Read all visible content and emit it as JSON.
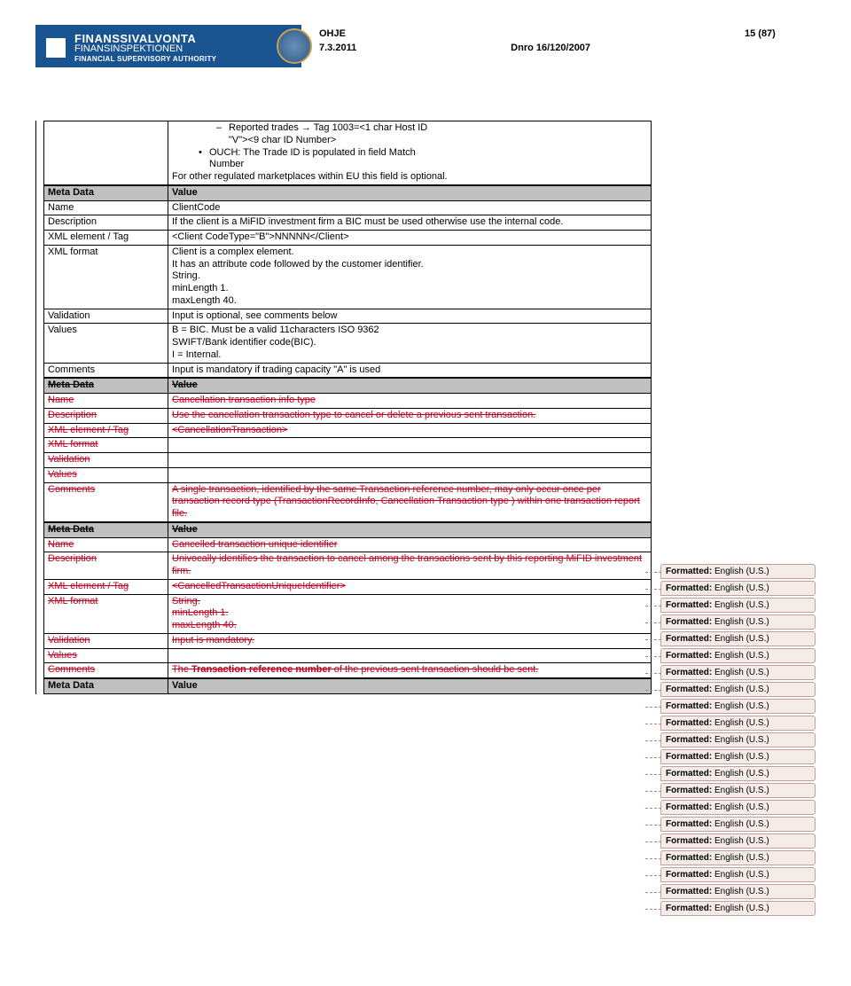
{
  "header": {
    "title": "OHJE",
    "page_num": "15 (87)",
    "date": "7.3.2011",
    "dnro": "Dnro 16/120/2007",
    "org1": "FINANSSIVALVONTA",
    "org2": "FINANSINSPEKTIONEN",
    "org3": "FINANCIAL SUPERVISORY AUTHORITY"
  },
  "intro": {
    "dash1_a": "Reported trades → Tag 1003=<1 char Host ID",
    "dash1_b": "\"V\"><9 char ID Number>",
    "bullet1_a": "OUCH: The Trade ID is populated in field Match",
    "bullet1_b": "Number",
    "tail": "For other regulated marketplaces within EU this field is optional."
  },
  "t1": {
    "meta": "Meta Data",
    "meta_v": "Value",
    "name": "Name",
    "name_v": "ClientCode",
    "desc": "Description",
    "desc_v": "If the client is a MiFID investment firm a BIC must be used otherwise use the internal code.",
    "xtag": "XML element / Tag",
    "xtag_v": "<Client CodeType=\"B\">NNNNN</Client>",
    "xfmt": "XML format",
    "xfmt_v1": "Client is a complex element.",
    "xfmt_v2": "It has an attribute code followed by the customer identifier.",
    "xfmt_v3": "String.",
    "xfmt_v4": "minLength 1.",
    "xfmt_v5": "maxLength 40.",
    "valid": "Validation",
    "valid_v": "Input is optional, see comments below",
    "values": "Values",
    "values_v1": "B = BIC. Must be a valid 11characters ISO 9362",
    "values_v2": "SWIFT/Bank identifier code(BIC).",
    "values_v3": "I = Internal.",
    "comm": "Comments",
    "comm_v": "Input is mandatory if trading capacity \"A\" is used"
  },
  "t2": {
    "meta": "Meta Data",
    "meta_v": "Value",
    "name": "Name",
    "name_v": "Cancellation transaction info type",
    "desc": "Description",
    "desc_v": "Use the cancellation transaction type to cancel or delete a previous sent transaction.",
    "xtag": "XML element / Tag",
    "xtag_v": "<CancellationTransaction>",
    "xfmt": "XML format",
    "valid": "Validation",
    "values": "Values",
    "comm": "Comments",
    "comm_v": "A single transaction, identified by the same Transaction reference number, may only occur once per transaction record type (TransactionRecordInfo, Cancellation Transaction type ) within one transaction report file."
  },
  "t3": {
    "meta": "Meta Data",
    "meta_v": "Value",
    "name": "Name",
    "name_v": "Cancelled transaction unique identifier",
    "desc": "Description",
    "desc_v": "Univocally identifies the transaction to cancel among the transactions sent by this reporting MiFID investment firm.",
    "xtag": "XML element / Tag",
    "xtag_v": "<CancelledTransactionUniqueIdentifier>",
    "xfmt": "XML format",
    "xfmt_v1": "String.",
    "xfmt_v2": "minLength 1.",
    "xfmt_v3": "maxLength 40.",
    "valid": "Validation",
    "valid_v": "Input is mandatory.",
    "values": "Values",
    "comm": "Comments",
    "comm_v_pre": "The ",
    "comm_v_bold": "Transaction reference number",
    "comm_v_post": " of the previous sent transaction should be sent."
  },
  "t4": {
    "meta": "Meta Data",
    "meta_v": "Value"
  },
  "balloon": {
    "label": "Formatted:",
    "value": "English (U.S.)"
  }
}
